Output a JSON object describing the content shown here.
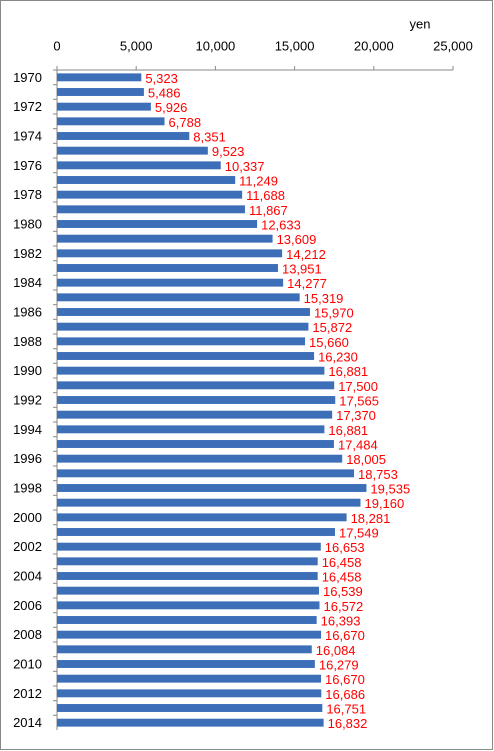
{
  "chart_data": {
    "type": "bar",
    "orientation": "horizontal",
    "axis_label": "yen",
    "categories": [
      "1970",
      null,
      "1972",
      null,
      "1974",
      null,
      "1976",
      null,
      "1978",
      null,
      "1980",
      null,
      "1982",
      null,
      "1984",
      null,
      "1986",
      null,
      "1988",
      null,
      "1990",
      null,
      "1992",
      null,
      "1994",
      null,
      "1996",
      null,
      "1998",
      null,
      "2000",
      null,
      "2002",
      null,
      "2004",
      null,
      "2006",
      null,
      "2008",
      null,
      "2010",
      null,
      "2012",
      null,
      "2014"
    ],
    "values": [
      5323,
      5486,
      5926,
      6788,
      8351,
      9523,
      10337,
      11249,
      11688,
      11867,
      12633,
      13609,
      14212,
      13951,
      14277,
      15319,
      15970,
      15872,
      15660,
      16230,
      16881,
      17500,
      17565,
      17370,
      16881,
      17484,
      18005,
      18753,
      19535,
      19160,
      18281,
      17549,
      16653,
      16458,
      16458,
      16539,
      16572,
      16393,
      16670,
      16084,
      16279,
      16670,
      16686,
      16751,
      16832
    ],
    "value_labels": [
      "5,323",
      "5,486",
      "5,926",
      "6,788",
      "8,351",
      "9,523",
      "10,337",
      "11,249",
      "11,688",
      "11,867",
      "12,633",
      "13,609",
      "14,212",
      "13,951",
      "14,277",
      "15,319",
      "15,970",
      "15,872",
      "15,660",
      "16,230",
      "16,881",
      "17,500",
      "17,565",
      "17,370",
      "16,881",
      "17,484",
      "18,005",
      "18,753",
      "19,535",
      "19,160",
      "18,281",
      "17,549",
      "16,653",
      "16,458",
      "16,458",
      "16,539",
      "16,572",
      "16,393",
      "16,670",
      "16,084",
      "16,279",
      "16,670",
      "16,686",
      "16,751",
      "16,832"
    ],
    "color": "#3d6fb8",
    "label_color": "#ff0000",
    "xlim": [
      0,
      25000
    ],
    "xticks": [
      0,
      {
        "value": 5000,
        "label": "5,000"
      },
      {
        "value": 10000,
        "label": "10,000"
      },
      {
        "value": 15000,
        "label": "15,000"
      },
      {
        "value": 20000,
        "label": "20,000"
      },
      {
        "value": 25000,
        "label": "25,000"
      }
    ],
    "grid": false
  }
}
